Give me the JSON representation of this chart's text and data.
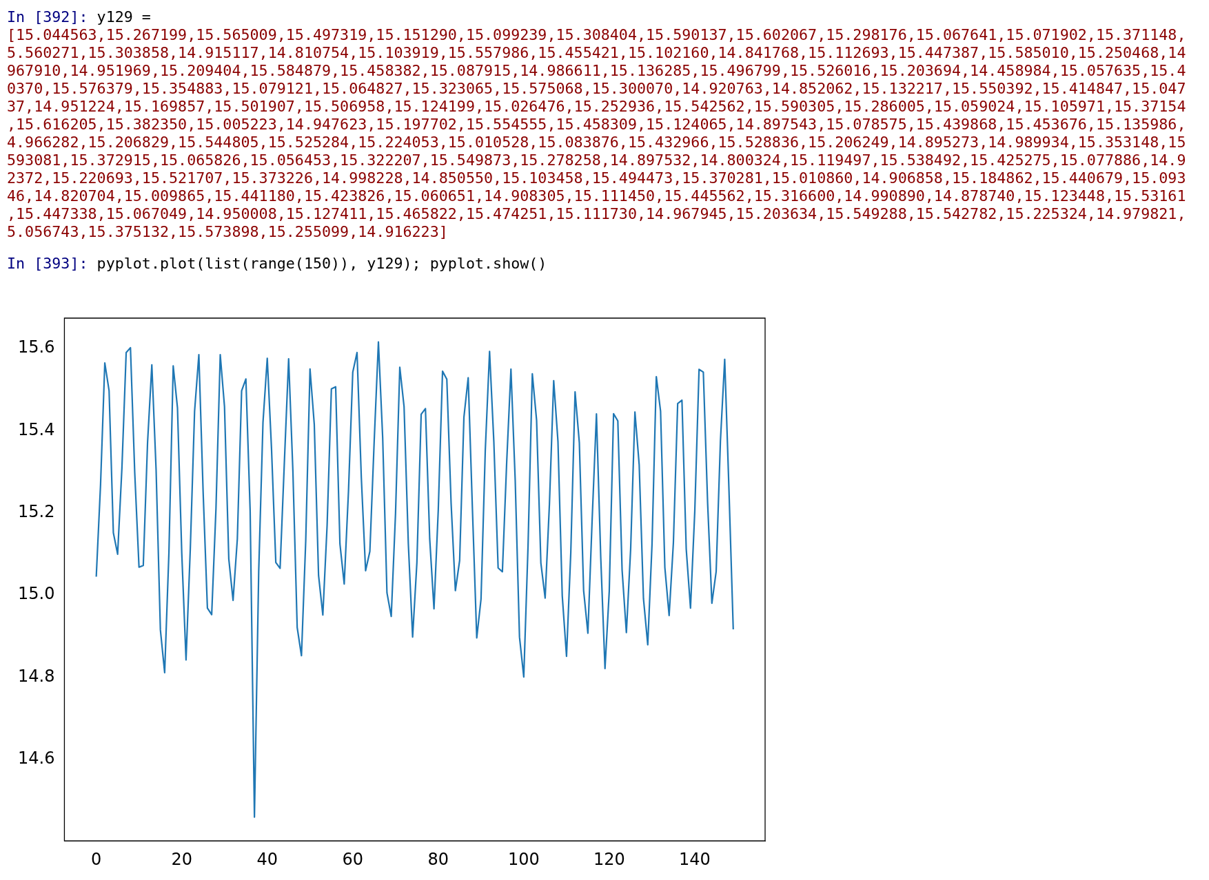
{
  "chart_data": {
    "type": "line",
    "annotations": [
      "In [392]: y129 =",
      "[15.044563,15.267199,15.565009,15.497319,15.151290,15.099239,15.308404,15.590137,15.602067,15.298176,15.067641,15.071902,15.371148,",
      "5.560271,15.303858,14.915117,14.810754,15.103919,15.557986,15.455421,15.102160,14.841768,15.112693,15.447387,15.585010,15.250468,14",
      "967910,14.951969,15.209404,15.584879,15.458382,15.087915,14.986611,15.136285,15.496799,15.526016,15.203694,14.458984,15.057635,15.4",
      "0370,15.576379,15.354883,15.079121,15.064827,15.323065,15.575068,15.300070,14.920763,14.852062,15.132217,15.550392,15.414847,15.047",
      "37,14.951224,15.169857,15.501907,15.506958,15.124199,15.026476,15.252936,15.542562,15.590305,15.286005,15.059024,15.105971,15.37154",
      ",15.616205,15.382350,15.005223,14.947623,15.197702,15.554555,15.458309,15.124065,14.897543,15.078575,15.439868,15.453676,15.135986,",
      "4.966282,15.206829,15.544805,15.525284,15.224053,15.010528,15.083876,15.432966,15.528836,15.206249,14.895273,14.989934,15.353148,15",
      "593081,15.372915,15.065826,15.056453,15.322207,15.549873,15.278258,14.897532,14.800324,15.119497,15.538492,15.425275,15.077886,14.9",
      "2372,15.220693,15.521707,15.373226,14.998228,14.850550,15.103458,15.494473,15.370281,15.010860,14.906858,15.184862,15.440679,15.093",
      "46,14.820704,15.009865,15.441180,15.423826,15.060651,14.908305,15.111450,15.445562,15.316600,14.990890,14.878740,15.123448,15.53161",
      ",15.447338,15.067049,14.950008,15.127411,15.465822,15.474251,15.111730,14.967945,15.203634,15.549288,15.542782,15.225324,14.979821,",
      "5.056743,15.375132,15.573898,15.255099,14.916223]",
      "In [393]: pyplot.plot(list(range(150)), y129); pyplot.show()"
    ],
    "x": [
      0,
      1,
      2,
      3,
      4,
      5,
      6,
      7,
      8,
      9,
      10,
      11,
      12,
      13,
      14,
      15,
      16,
      17,
      18,
      19,
      20,
      21,
      22,
      23,
      24,
      25,
      26,
      27,
      28,
      29,
      30,
      31,
      32,
      33,
      34,
      35,
      36,
      37,
      38,
      39,
      40,
      41,
      42,
      43,
      44,
      45,
      46,
      47,
      48,
      49,
      50,
      51,
      52,
      53,
      54,
      55,
      56,
      57,
      58,
      59,
      60,
      61,
      62,
      63,
      64,
      65,
      66,
      67,
      68,
      69,
      70,
      71,
      72,
      73,
      74,
      75,
      76,
      77,
      78,
      79,
      80,
      81,
      82,
      83,
      84,
      85,
      86,
      87,
      88,
      89,
      90,
      91,
      92,
      93,
      94,
      95,
      96,
      97,
      98,
      99,
      100,
      101,
      102,
      103,
      104,
      105,
      106,
      107,
      108,
      109,
      110,
      111,
      112,
      113,
      114,
      115,
      116,
      117,
      118,
      119,
      120,
      121,
      122,
      123,
      124,
      125,
      126,
      127,
      128,
      129,
      130,
      131,
      132,
      133,
      134,
      135,
      136,
      137,
      138,
      139,
      140,
      141,
      142,
      143,
      144,
      145,
      146,
      147,
      148,
      149
    ],
    "values": [
      15.044563,
      15.267199,
      15.565009,
      15.497319,
      15.15129,
      15.099239,
      15.308404,
      15.590137,
      15.602067,
      15.298176,
      15.067641,
      15.071902,
      15.371148,
      15.560271,
      15.303858,
      14.915117,
      14.810754,
      15.103919,
      15.557986,
      15.455421,
      15.10216,
      14.841768,
      15.112693,
      15.447387,
      15.58501,
      15.250468,
      14.96791,
      14.951969,
      15.209404,
      15.584879,
      15.458382,
      15.087915,
      14.986611,
      15.136285,
      15.496799,
      15.526016,
      15.203694,
      14.458984,
      15.057635,
      15.42037,
      15.576379,
      15.354883,
      15.079121,
      15.064827,
      15.323065,
      15.575068,
      15.30007,
      14.920763,
      14.852062,
      15.132217,
      15.550392,
      15.414847,
      15.047537,
      14.951224,
      15.169857,
      15.501907,
      15.506958,
      15.124199,
      15.026476,
      15.252936,
      15.542562,
      15.590305,
      15.286005,
      15.059024,
      15.105971,
      15.371547,
      15.616205,
      15.38235,
      15.005223,
      14.947623,
      15.197702,
      15.554555,
      15.458309,
      15.124065,
      14.897543,
      15.078575,
      15.439868,
      15.453676,
      15.135986,
      14.966282,
      15.206829,
      15.544805,
      15.525284,
      15.224053,
      15.010528,
      15.083876,
      15.432966,
      15.528836,
      15.206249,
      14.895273,
      14.989934,
      15.353148,
      15.593081,
      15.372915,
      15.065826,
      15.056453,
      15.322207,
      15.549873,
      15.278258,
      14.897532,
      14.800324,
      15.119497,
      15.538492,
      15.425275,
      15.077886,
      14.992372,
      15.220693,
      15.521707,
      15.373226,
      14.998228,
      14.85055,
      15.103458,
      15.494473,
      15.370281,
      15.01086,
      14.906858,
      15.184862,
      15.440679,
      15.093046,
      14.820704,
      15.009865,
      15.44118,
      15.423826,
      15.060651,
      14.908305,
      15.11145,
      15.445562,
      15.3166,
      14.99089,
      14.87874,
      15.123448,
      15.531615,
      15.447338,
      15.067049,
      14.950008,
      15.127411,
      15.465822,
      15.474251,
      15.11173,
      14.967945,
      15.203634,
      15.549288,
      15.542782,
      15.225324,
      14.979821,
      15.056743,
      15.375132,
      15.573898,
      15.255099,
      14.916223
    ],
    "color": "#1f77b4",
    "marker": "none",
    "line_style": "solid",
    "xlim": [
      -7.45,
      156.45
    ],
    "xticks": [
      0,
      20,
      40,
      60,
      80,
      100,
      120,
      140
    ],
    "ylim": [
      14.4011,
      15.6741
    ],
    "yticks": [
      {
        "value": 14.6,
        "label": "14.6"
      },
      {
        "value": 14.8,
        "label": "14.8"
      },
      {
        "value": 15.0,
        "label": "15.0"
      },
      {
        "value": 15.2,
        "label": "15.2"
      },
      {
        "value": 15.4,
        "label": "15.4"
      },
      {
        "value": 15.6,
        "label": "15.6"
      }
    ]
  }
}
